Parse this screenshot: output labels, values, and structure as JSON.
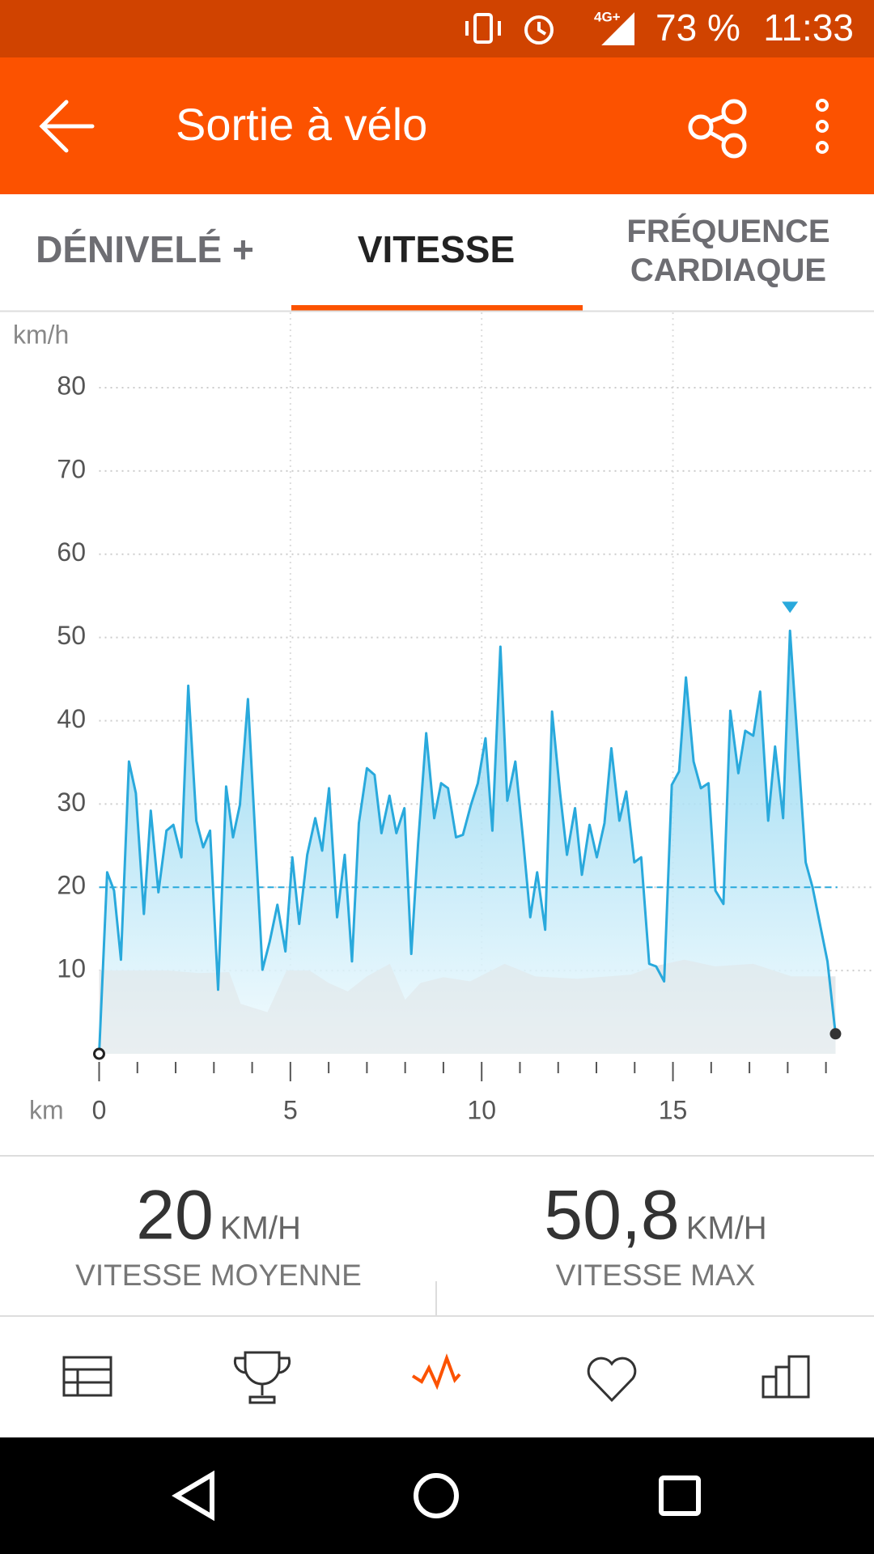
{
  "status_bar": {
    "network": "4G+",
    "battery": "73 %",
    "time": "11:33"
  },
  "app_bar": {
    "title": "Sortie à vélo"
  },
  "tabs": [
    "DÉNIVELÉ +",
    "VITESSE",
    "FRÉQUENCE CARDIAQUE"
  ],
  "chart_data": {
    "type": "line",
    "y_label": "km/h",
    "x_label": "km",
    "xlim": [
      0,
      19.3
    ],
    "ylim": [
      0,
      80
    ],
    "xticks": [
      0,
      5,
      10,
      15
    ],
    "xminorticks": [
      1,
      2,
      3,
      4,
      6,
      7,
      8,
      9,
      11,
      12,
      13,
      14,
      16,
      17,
      18,
      19
    ],
    "yticks": [
      10,
      20,
      30,
      40,
      50,
      60,
      70,
      80
    ],
    "grid": true,
    "series": [
      {
        "color": "#29a9dc",
        "x": [
          0,
          0.21,
          0.39,
          0.57,
          0.78,
          0.96,
          1.17,
          1.35,
          1.55,
          1.76,
          1.94,
          2.15,
          2.33,
          2.54,
          2.72,
          2.9,
          3.11,
          3.32,
          3.5,
          3.68,
          3.89,
          4.09,
          4.27,
          4.46,
          4.66,
          4.87,
          5.05,
          5.23,
          5.44,
          5.65,
          5.83,
          6.01,
          6.22,
          6.42,
          6.61,
          6.79,
          7.0,
          7.2,
          7.38,
          7.59,
          7.77,
          7.98,
          8.16,
          8.34,
          8.55,
          8.76,
          8.94,
          9.12,
          9.33,
          9.51,
          9.72,
          9.9,
          10.1,
          10.28,
          10.49,
          10.67,
          10.88,
          11.09,
          11.27,
          11.45,
          11.66,
          11.84,
          12.05,
          12.23,
          12.44,
          12.62,
          12.82,
          13.01,
          13.21,
          13.39,
          13.6,
          13.78,
          13.99,
          14.17,
          14.38,
          14.56,
          14.77,
          14.97,
          15.16,
          15.34,
          15.54,
          15.73,
          15.93,
          16.11,
          16.32,
          16.5,
          16.71,
          16.89,
          17.1,
          17.28,
          17.49,
          17.67,
          17.88,
          18.06,
          18.26,
          18.47,
          18.65,
          18.86,
          19.04,
          19.25
        ],
        "values": [
          0,
          21.8,
          19.6,
          11.3,
          35.1,
          31.3,
          16.8,
          29.2,
          19.4,
          26.8,
          27.5,
          23.6,
          44.2,
          28,
          24.8,
          26.8,
          7.7,
          32.1,
          26,
          29.9,
          42.6,
          25.4,
          10.1,
          13.5,
          17.9,
          12.3,
          23.6,
          15.6,
          23.9,
          28.3,
          24.4,
          31.9,
          16.4,
          23.9,
          11.1,
          27.7,
          34.3,
          33.5,
          26.5,
          31,
          26.5,
          29.5,
          12,
          25.4,
          38.5,
          28.3,
          32.5,
          31.9,
          26,
          26.3,
          29.9,
          32.5,
          37.9,
          26.8,
          48.9,
          30.4,
          35.1,
          25.4,
          16.4,
          21.8,
          14.9,
          41.1,
          31.3,
          23.9,
          29.5,
          21.5,
          27.5,
          23.6,
          27.7,
          36.7,
          28,
          31.5,
          23,
          23.6,
          10.8,
          10.5,
          8.7,
          32.3,
          33.9,
          45.2,
          35.1,
          31.9,
          32.5,
          19.6,
          18,
          41.2,
          33.7,
          38.8,
          38.2,
          43.5,
          28,
          36.9,
          28.3,
          50.8,
          37.3,
          23,
          20,
          15.2,
          11.1,
          2.4
        ]
      },
      {
        "color": "#e4e7ea",
        "x": [
          0,
          1.8,
          2.6,
          3.4,
          3.7,
          4.4,
          4.9,
          5.5,
          6.0,
          6.5,
          7.0,
          7.6,
          8.0,
          8.4,
          9.0,
          9.7,
          10.6,
          11.4,
          12.5,
          13.9,
          14.5,
          15.3,
          16.1,
          17.1,
          18.1,
          19.25
        ],
        "values": [
          10,
          10,
          9.7,
          9.8,
          6,
          5,
          10,
          10,
          8.5,
          7.5,
          9.3,
          10.8,
          6.5,
          8.5,
          9.2,
          8.7,
          10.8,
          9.3,
          9,
          9.5,
          10.5,
          11.3,
          10.5,
          10.8,
          9.3,
          9.3
        ]
      }
    ]
  },
  "stats": [
    {
      "value": 20,
      "unit": "KM/H",
      "label": "VITESSE MOYENNE"
    },
    {
      "value": 50.8,
      "value_label": "50,8",
      "unit": "KM/H",
      "label": "VITESSE MAX"
    }
  ]
}
